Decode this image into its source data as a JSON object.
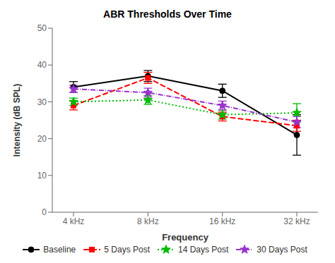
{
  "chart_data": {
    "type": "line",
    "title": "ABR Thresholds Over Time",
    "xlabel": "Frequency",
    "ylabel": "Intensity (dB SPL)",
    "categories": [
      "4 kHz",
      "8 kHz",
      "16 kHz",
      "32 kHz"
    ],
    "ylim": [
      0,
      50
    ],
    "yticks": [
      0,
      10,
      20,
      30,
      40,
      50
    ],
    "grid": false,
    "legend": "bottom",
    "series": [
      {
        "name": "Baseline",
        "color": "#000000",
        "marker": "circle",
        "line_style": "solid",
        "values": [
          34.0,
          37.0,
          33.0,
          21.0
        ],
        "errors": [
          1.5,
          1.5,
          1.8,
          5.5
        ]
      },
      {
        "name": "5 Days Post",
        "color": "#ff0000",
        "marker": "square",
        "line_style": "dashed",
        "values": [
          29.0,
          36.5,
          26.0,
          23.5
        ],
        "errors": [
          1.2,
          1.5,
          1.2,
          1.5
        ]
      },
      {
        "name": "14 Days Post",
        "color": "#00bb00",
        "marker": "star",
        "line_style": "dotted",
        "values": [
          30.0,
          30.5,
          26.5,
          27.0
        ],
        "errors": [
          1.0,
          1.2,
          1.2,
          2.5
        ]
      },
      {
        "name": "30 Days Post",
        "color": "#9933cc",
        "marker": "star",
        "line_style": "dashdot",
        "values": [
          33.5,
          32.5,
          29.0,
          24.5
        ],
        "errors": [
          1.0,
          1.2,
          1.2,
          1.5
        ]
      }
    ]
  }
}
